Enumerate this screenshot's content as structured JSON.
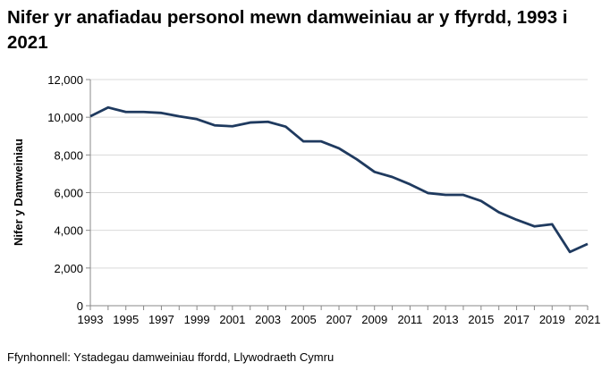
{
  "chart_data": {
    "type": "line",
    "title": "Nifer yr anafiadau personol mewn damweiniau ar y ffyrdd, 1993 i 2021",
    "xlabel": "",
    "ylabel": "Nifer y Damweiniau",
    "ylim": [
      0,
      12000
    ],
    "yticks": [
      "0",
      "2,000",
      "4,000",
      "6,000",
      "8,000",
      "10,000",
      "12,000"
    ],
    "xticklabels": [
      "1993",
      "1995",
      "1997",
      "1999",
      "2001",
      "2003",
      "2005",
      "2007",
      "2009",
      "2011",
      "2013",
      "2015",
      "2017",
      "2019",
      "2021"
    ],
    "grid": "horizontal",
    "x": [
      1993,
      1994,
      1995,
      1996,
      1997,
      1998,
      1999,
      2000,
      2001,
      2002,
      2003,
      2004,
      2005,
      2006,
      2007,
      2008,
      2009,
      2010,
      2011,
      2012,
      2013,
      2014,
      2015,
      2016,
      2017,
      2018,
      2019,
      2020,
      2021
    ],
    "series": [
      {
        "values": [
          10050,
          10520,
          10280,
          10280,
          10230,
          10050,
          9900,
          9570,
          9520,
          9720,
          9760,
          9500,
          8720,
          8720,
          8350,
          7770,
          7100,
          6830,
          6440,
          5980,
          5880,
          5880,
          5560,
          4960,
          4560,
          4210,
          4320,
          2850,
          3280
        ]
      }
    ],
    "line_color": "#1f3a5f"
  },
  "source": "Ffynhonnell: Ystadegau damweiniau ffordd, Llywodraeth Cymru"
}
